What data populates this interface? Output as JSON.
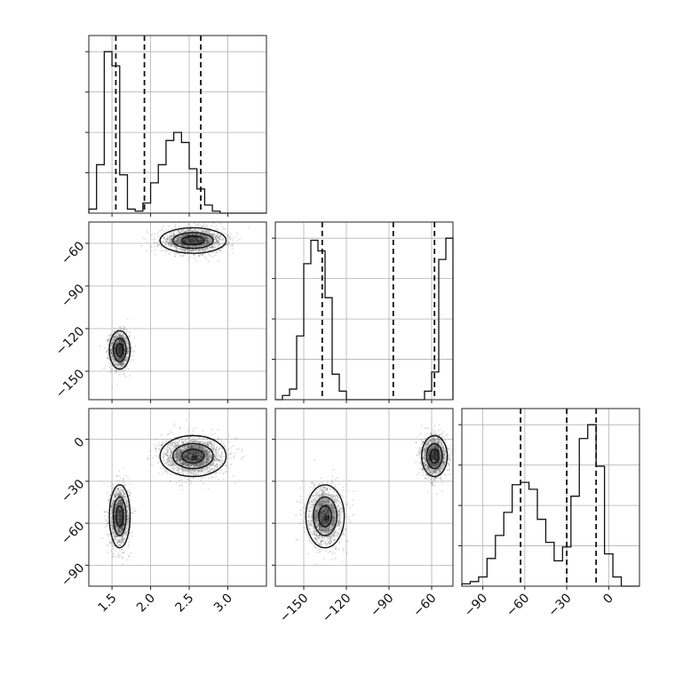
{
  "chart_data": {
    "type": "corner",
    "parameters": [
      {
        "index": 0,
        "range": [
          1.2,
          3.5
        ],
        "ticks": [
          1.5,
          2.0,
          2.5,
          3.0
        ],
        "tick_labels": [
          "1.5",
          "2.0",
          "2.5",
          "3.0"
        ],
        "quantiles": [
          1.55,
          1.92,
          2.65
        ]
      },
      {
        "index": 1,
        "range": [
          -170,
          -45
        ],
        "ticks": [
          -150,
          -120,
          -90,
          -60
        ],
        "tick_labels": [
          "−150",
          "−120",
          "−90",
          "−60"
        ],
        "quantiles": [
          -137,
          -87,
          -58
        ]
      },
      {
        "index": 2,
        "range": [
          -105,
          22
        ],
        "ticks": [
          -90,
          -60,
          -30,
          0
        ],
        "tick_labels": [
          "−90",
          "−60",
          "−30",
          "0"
        ],
        "quantiles": [
          -63,
          -30,
          -9
        ]
      }
    ],
    "histograms": [
      {
        "param": 0,
        "bin_start": 1.2,
        "bin_width": 0.1,
        "counts": [
          2,
          24,
          80,
          73,
          19,
          2,
          1,
          5,
          15,
          24,
          36,
          40,
          35,
          22,
          12,
          4,
          1,
          0,
          0,
          0,
          0,
          0,
          0
        ]
      },
      {
        "param": 1,
        "bin_start": -170,
        "bin_width": 5,
        "counts": [
          0,
          2,
          5,
          30,
          64,
          75,
          70,
          48,
          12,
          4,
          0,
          0,
          0,
          0,
          0,
          0,
          0,
          0,
          0,
          0,
          0,
          4,
          13,
          66,
          76,
          8
        ]
      },
      {
        "param": 2,
        "bin_start": -105,
        "bin_width": 6,
        "counts": [
          1,
          2,
          4,
          12,
          22,
          32,
          44,
          45,
          42,
          29,
          19,
          11,
          17,
          39,
          64,
          70,
          52,
          14,
          4,
          0,
          0
        ]
      }
    ],
    "modes": [
      {
        "weight": 0.45,
        "mean": [
          1.6,
          -135,
          -55
        ],
        "sd": [
          0.06,
          6,
          10
        ]
      },
      {
        "weight": 0.55,
        "mean": [
          2.55,
          -58,
          -12
        ],
        "sd": [
          0.19,
          4,
          6.5
        ]
      }
    ],
    "contour_sigmas": [
      0.6,
      1.1,
      1.8
    ],
    "density_levels": [
      0.14,
      0.38,
      0.62,
      0.86
    ]
  }
}
